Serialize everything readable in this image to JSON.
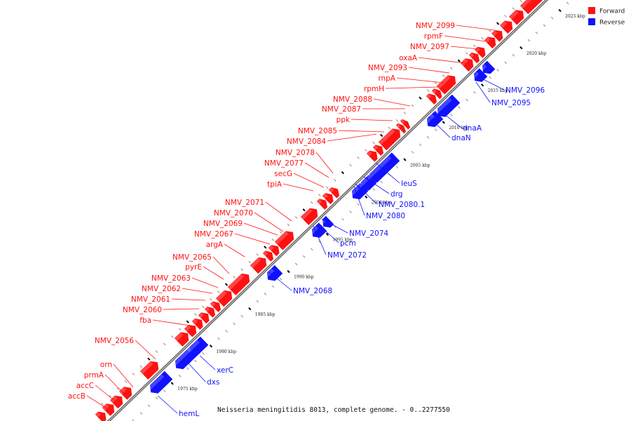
{
  "colors": {
    "forward": "#ff1111",
    "reverse": "#1111ff",
    "backbone": "#888888"
  },
  "legend": [
    {
      "label": "Forward",
      "color": "#ff1111"
    },
    {
      "label": "Reverse",
      "color": "#1111ff"
    }
  ],
  "caption": "Neisseria meningitidis 8013, complete genome. - 0..2277550",
  "scale_ticks": [
    "1975 kbp",
    "1980 kbp",
    "1985 kbp",
    "1990 kbp",
    "1995 kbp",
    "2000 kbp",
    "2005 kbp",
    "2010 kbp",
    "2015 kbp",
    "2020 kbp",
    "2025 kbp"
  ],
  "forward_genes": [
    "accB",
    "accC",
    "prmA",
    "orn",
    "NMV_2056",
    "fba",
    "NMV_2060",
    "NMV_2061",
    "NMV_2062",
    "NMV_2063",
    "pyrE",
    "NMV_2065",
    "argA",
    "NMV_2067",
    "NMV_2069",
    "NMV_2070",
    "NMV_2071",
    "tpiA",
    "secG",
    "NMV_2077",
    "NMV_2078",
    "NMV_2084",
    "NMV_2085",
    "ppk",
    "NMV_2087",
    "NMV_2088",
    "rpmH",
    "rnpA",
    "NMV_2093",
    "oxaA",
    "NMV_2097",
    "rpmF",
    "NMV_2099"
  ],
  "reverse_genes": [
    "hemL",
    "dxs",
    "xerC",
    "NMV_2068",
    "NMV_2072",
    "pcm",
    "NMV_2074",
    "NMV_2080",
    "NMV_2080.1",
    "drg",
    "leuS",
    "dnaN",
    "dnaA",
    "NMV_2095",
    "NMV_2096"
  ]
}
